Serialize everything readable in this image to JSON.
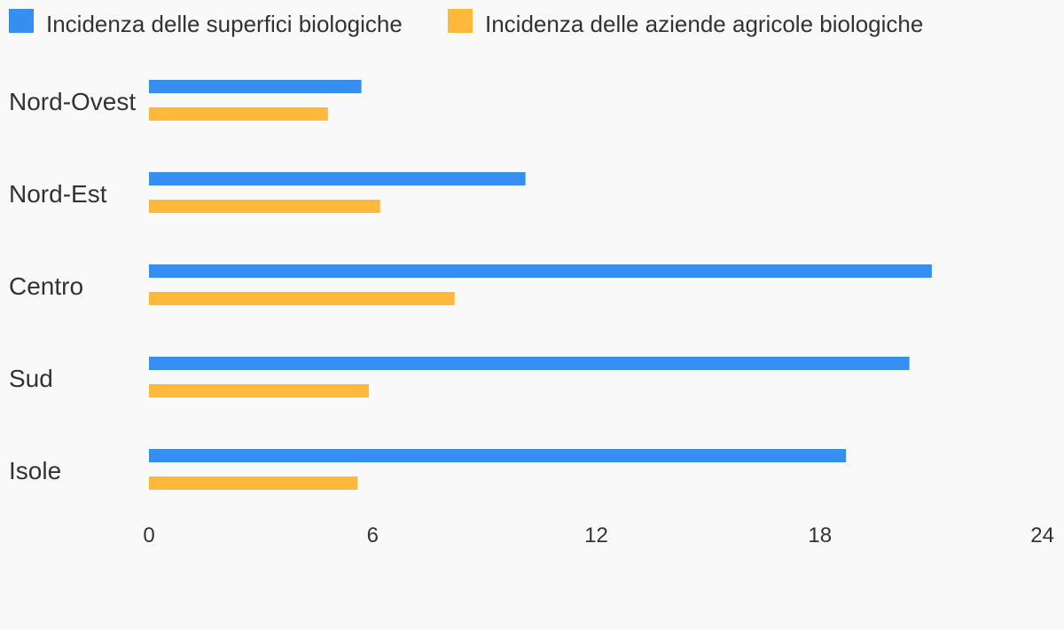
{
  "chart_data": {
    "type": "bar",
    "orientation": "horizontal",
    "categories": [
      "Nord-Ovest",
      "Nord-Est",
      "Centro",
      "Sud",
      "Isole"
    ],
    "series": [
      {
        "name": "Incidenza delle superfici biologiche",
        "color": "#368ff0",
        "values": [
          5.7,
          10.1,
          21.0,
          20.4,
          18.7
        ]
      },
      {
        "name": "Incidenza delle aziende agricole biologiche",
        "color": "#ffb93a",
        "values": [
          4.8,
          6.2,
          8.2,
          5.9,
          5.6
        ]
      }
    ],
    "xlim": [
      0,
      24
    ],
    "xticks": [
      "0",
      "6",
      "12",
      "18",
      "24"
    ],
    "grid": false,
    "legend_position": "top-left"
  }
}
